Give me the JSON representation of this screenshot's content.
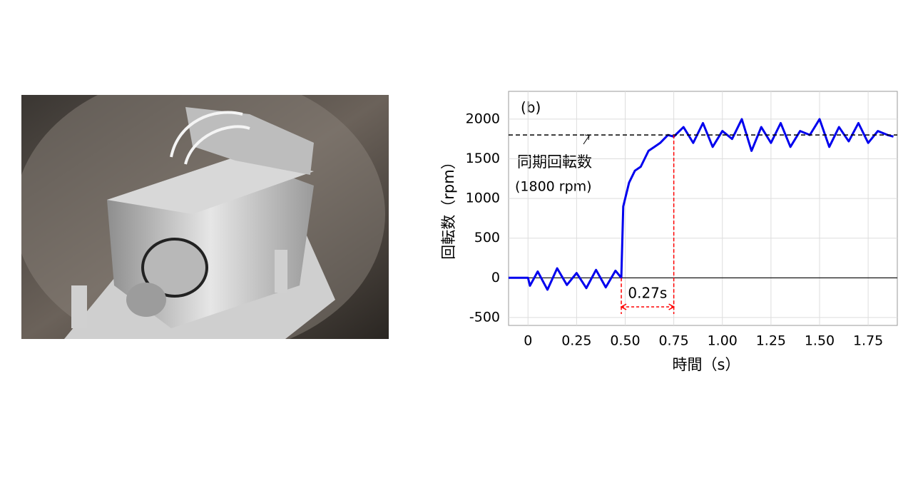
{
  "chart_data": {
    "type": "line",
    "panel_label": "(b)",
    "x_label": "時間（s）",
    "y_label": "回転数（rpm）",
    "x": [
      -0.1,
      -0.05,
      0,
      0.01,
      0.05,
      0.1,
      0.15,
      0.2,
      0.25,
      0.3,
      0.35,
      0.4,
      0.45,
      0.48,
      0.49,
      0.5,
      0.52,
      0.55,
      0.58,
      0.6,
      0.62,
      0.65,
      0.68,
      0.7,
      0.72,
      0.75,
      0.8,
      0.85,
      0.9,
      0.95,
      1.0,
      1.05,
      1.1,
      1.15,
      1.2,
      1.25,
      1.3,
      1.35,
      1.4,
      1.45,
      1.5,
      1.55,
      1.6,
      1.65,
      1.7,
      1.75,
      1.8,
      1.85,
      1.88
    ],
    "values": [
      0,
      0,
      0,
      -100,
      80,
      -150,
      120,
      -90,
      60,
      -130,
      100,
      -120,
      90,
      0,
      900,
      1000,
      1200,
      1350,
      1400,
      1500,
      1600,
      1650,
      1700,
      1750,
      1800,
      1780,
      1900,
      1700,
      1950,
      1650,
      1850,
      1750,
      2000,
      1600,
      1900,
      1700,
      1950,
      1650,
      1850,
      1800,
      2000,
      1650,
      1900,
      1720,
      1950,
      1700,
      1850,
      1800,
      1780
    ],
    "color": "#0000ee",
    "xlim": [
      -0.1,
      1.9
    ],
    "ylim": [
      -600,
      2350
    ],
    "xticks": [
      0,
      0.25,
      {
        "value": 0.5,
        "label": "0.50"
      },
      0.75,
      {
        "value": 1,
        "label": "1.00"
      },
      1.25,
      {
        "value": 1.5,
        "label": "1.50"
      },
      1.75
    ],
    "yticks": [
      -500,
      0,
      500,
      1000,
      1500,
      2000
    ],
    "grid": true,
    "reference_line": 1800,
    "annotations": [
      "同期回転数",
      "(1800 rpm)"
    ],
    "interval": {
      "start": 0.48,
      "end": 0.75,
      "label": "0.27s",
      "color": "#ff0000"
    }
  }
}
